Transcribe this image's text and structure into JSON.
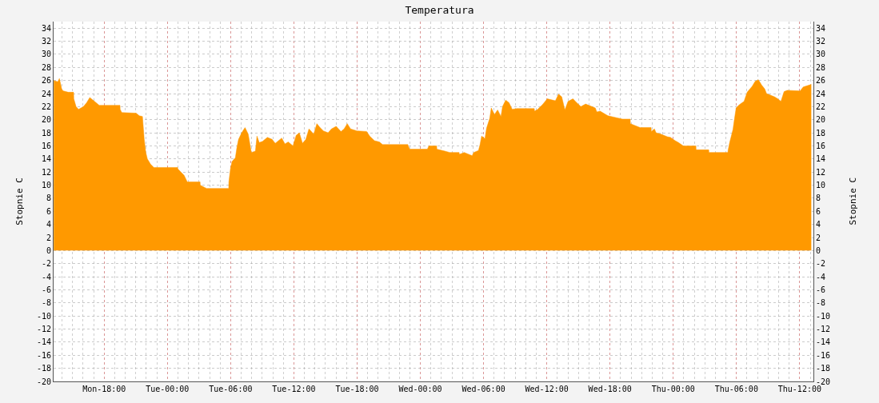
{
  "chart_data": {
    "type": "area",
    "title": "Temperatura",
    "ylabel": "Stopnie C",
    "y2label": "Stopnie C",
    "x": [
      "--01-01T13:13",
      "--01-01T13:36",
      "--01-01T13:45",
      "--01-01T13:59",
      "--01-01T14:08",
      "--01-01T14:35",
      "--01-01T15:06",
      "--01-01T15:07",
      "--01-01T15:20",
      "--01-01T15:34",
      "--01-01T16:02",
      "--01-01T16:20",
      "--01-01T16:38",
      "--01-01T17:05",
      "--01-01T17:32",
      "--01-01T19:30",
      "--01-01T19:31",
      "--01-01T19:40",
      "--01-01T21:02",
      "--01-01T21:20",
      "--01-01T21:38",
      "--01-01T21:48",
      "--01-01T21:57",
      "--01-01T22:06",
      "--01-01T22:24",
      "--01-01T22:43",
      "--01-02T00:58",
      "--01-02T00:59",
      "--01-02T01:17",
      "--01-02T01:35",
      "--01-02T01:53",
      "--01-02T03:06",
      "--01-02T03:07",
      "--01-02T03:43",
      "--01-02T05:49",
      "--01-02T05:50",
      "--01-02T05:59",
      "--01-02T06:08",
      "--01-02T06:27",
      "--01-02T06:36",
      "--01-02T06:45",
      "--01-02T07:03",
      "--01-02T07:22",
      "--01-02T07:40",
      "--01-02T07:58",
      "--01-02T08:21",
      "--01-02T08:30",
      "--01-02T08:43",
      "--01-02T09:02",
      "--01-02T09:29",
      "--01-02T09:56",
      "--01-02T10:14",
      "--01-02T10:51",
      "--01-02T11:09",
      "--01-02T11:28",
      "--01-02T11:55",
      "--01-02T12:13",
      "--01-02T12:31",
      "--01-02T12:49",
      "--01-02T13:08",
      "--01-02T13:26",
      "--01-02T13:53",
      "--01-02T14:11",
      "--01-02T14:29",
      "--01-02T14:48",
      "--01-02T15:15",
      "--01-02T15:34",
      "--01-02T16:01",
      "--01-02T16:28",
      "--01-02T16:46",
      "--01-02T17:04",
      "--01-02T17:23",
      "--01-02T17:59",
      "--01-02T18:54",
      "--01-02T19:12",
      "--01-02T19:39",
      "--01-02T20:07",
      "--01-02T20:25",
      "--01-02T22:49",
      "--01-02T22:50",
      "--01-02T22:59",
      "--01-03T00:40",
      "--01-03T00:49",
      "--01-03T01:33",
      "--01-03T01:34",
      "--01-03T02:20",
      "--01-03T02:47",
      "--01-03T03:41",
      "--01-03T03:42",
      "--01-03T04:10",
      "--01-03T04:55",
      "--01-03T05:04",
      "--01-03T05:31",
      "--01-03T05:40",
      "--01-03T05:49",
      "--01-03T06:08",
      "--01-03T06:17",
      "--01-03T06:35",
      "--01-03T06:44",
      "--01-03T07:02",
      "--01-03T07:20",
      "--01-03T07:39",
      "--01-03T07:48",
      "--01-03T08:06",
      "--01-03T08:25",
      "--01-03T08:43",
      "--01-03T09:10",
      "--01-03T10:49",
      "--01-03T10:50",
      "--01-03T11:08",
      "--01-03T11:35",
      "--01-03T12:03",
      "--01-03T12:49",
      "--01-03T13:07",
      "--01-03T13:25",
      "--01-03T13:43",
      "--01-03T14:01",
      "--01-03T14:29",
      "--01-03T14:47",
      "--01-03T15:14",
      "--01-03T15:41",
      "--01-03T16:36",
      "--01-03T16:45",
      "--01-03T17:04",
      "--01-03T17:48",
      "--01-03T17:49",
      "--01-03T19:11",
      "--01-03T19:55",
      "--01-03T19:56",
      "--01-03T20:51",
      "--01-03T21:54",
      "--01-03T21:55",
      "--01-03T22:13",
      "--01-03T22:22",
      "--01-03T22:50",
      "--01-03T23:26",
      "--01-03T23:44",
      "--01-04T00:11",
      "--01-04T00:30",
      "--01-04T00:57",
      "--01-04T02:09",
      "--01-04T02:10",
      "--01-04T03:22",
      "--01-04T03:23",
      "--01-04T05:11",
      "--01-04T05:12",
      "--01-04T05:21",
      "--01-04T05:40",
      "--01-04T05:49",
      "--01-04T05:58",
      "--01-04T06:16",
      "--01-04T06:43",
      "--01-04T07:01",
      "--01-04T07:29",
      "--01-04T07:47",
      "--01-04T08:05",
      "--01-04T08:23",
      "--01-04T08:41",
      "--01-04T08:51",
      "--01-04T09:36",
      "--01-04T09:55",
      "--01-04T10:13",
      "--01-04T10:31",
      "--01-04T10:49",
      "--01-04T12:02",
      "--01-04T12:20",
      "--01-04T13:06"
    ],
    "series": [
      {
        "color": "#ff9900",
        "values": [
          26,
          25.8,
          26.3,
          24.6,
          24.4,
          24.2,
          24.2,
          23.2,
          22,
          21.6,
          22,
          22.6,
          23.4,
          22.8,
          22.2,
          22.2,
          21.6,
          21.1,
          21,
          20.6,
          20.5,
          17,
          15,
          14,
          13.2,
          12.7,
          12.7,
          12.5,
          12,
          11.5,
          10.5,
          10.5,
          10,
          9.5,
          9.5,
          10.5,
          12.5,
          13.6,
          14.2,
          15.8,
          17,
          18,
          18.8,
          17.8,
          15,
          15.2,
          17.5,
          16.5,
          16.7,
          17.3,
          17,
          16.4,
          17.2,
          16.3,
          16.6,
          16,
          17.6,
          18,
          16.4,
          17,
          18.6,
          17.8,
          19.4,
          18.8,
          18.3,
          18,
          18.6,
          19,
          18.2,
          18.6,
          19.4,
          18.6,
          18.3,
          18.2,
          17.5,
          16.8,
          16.6,
          16.2,
          16.2,
          16.1,
          15.5,
          15.5,
          16,
          16,
          15.5,
          15.2,
          15,
          15,
          14.7,
          15,
          14.5,
          15,
          15.3,
          16.2,
          17.5,
          17.1,
          18.7,
          20.2,
          21.8,
          20.8,
          21.5,
          20.5,
          22,
          23,
          22.6,
          21.6,
          21.7,
          21.7,
          21.3,
          21.6,
          22.3,
          23.2,
          22.9,
          23.9,
          23.5,
          21.5,
          22.8,
          23.2,
          22.7,
          22,
          22.4,
          21.8,
          21.2,
          21.3,
          20.6,
          20.6,
          20.1,
          20.1,
          19.4,
          18.8,
          18.8,
          18.2,
          18.6,
          18,
          17.8,
          17.4,
          17.3,
          16.8,
          16.5,
          16,
          16,
          15.4,
          15.4,
          15,
          15,
          15.3,
          16.5,
          18.5,
          20.2,
          21.8,
          22.3,
          22.8,
          24.2,
          25.1,
          25.9,
          26.1,
          25.3,
          24.7,
          24,
          23.5,
          23.2,
          22.8,
          24.3,
          24.5,
          24.4,
          25,
          25.4
        ]
      }
    ],
    "xlim": [
      "--01-01T13:12",
      "--01-04T13:18"
    ],
    "xticks": [
      {
        "value": "--01-01T18:00",
        "label": "Mon-18:00"
      },
      {
        "value": "--01-02T00:00",
        "label": "Tue-00:00"
      },
      {
        "value": "--01-02T06:00",
        "label": "Tue-06:00"
      },
      {
        "value": "--01-02T12:00",
        "label": "Tue-12:00"
      },
      {
        "value": "--01-02T18:00",
        "label": "Tue-18:00"
      },
      {
        "value": "--01-03T00:00",
        "label": "Wed-00:00"
      },
      {
        "value": "--01-03T06:00",
        "label": "Wed-06:00"
      },
      {
        "value": "--01-03T12:00",
        "label": "Wed-12:00"
      },
      {
        "value": "--01-03T18:00",
        "label": "Wed-18:00"
      },
      {
        "value": "--01-04T00:00",
        "label": "Thu-00:00"
      },
      {
        "value": "--01-04T06:00",
        "label": "Thu-06:00"
      },
      {
        "value": "--01-04T12:00",
        "label": "Thu-12:00"
      }
    ],
    "ylim": [
      -20,
      35
    ],
    "yticks": [
      -20,
      -18,
      -16,
      -14,
      -12,
      -10,
      -8,
      -6,
      -4,
      -2,
      0,
      2,
      4,
      6,
      8,
      10,
      12,
      14,
      16,
      18,
      20,
      22,
      24,
      26,
      28,
      30,
      32,
      34
    ],
    "y2lim": [
      -20,
      35
    ],
    "y2ticks": [
      -20,
      -18,
      -16,
      -14,
      -12,
      -10,
      -8,
      -6,
      -4,
      -2,
      0,
      2,
      4,
      6,
      8,
      10,
      12,
      14,
      16,
      18,
      20,
      22,
      24,
      26,
      28,
      30,
      32,
      34
    ],
    "grid": true
  }
}
